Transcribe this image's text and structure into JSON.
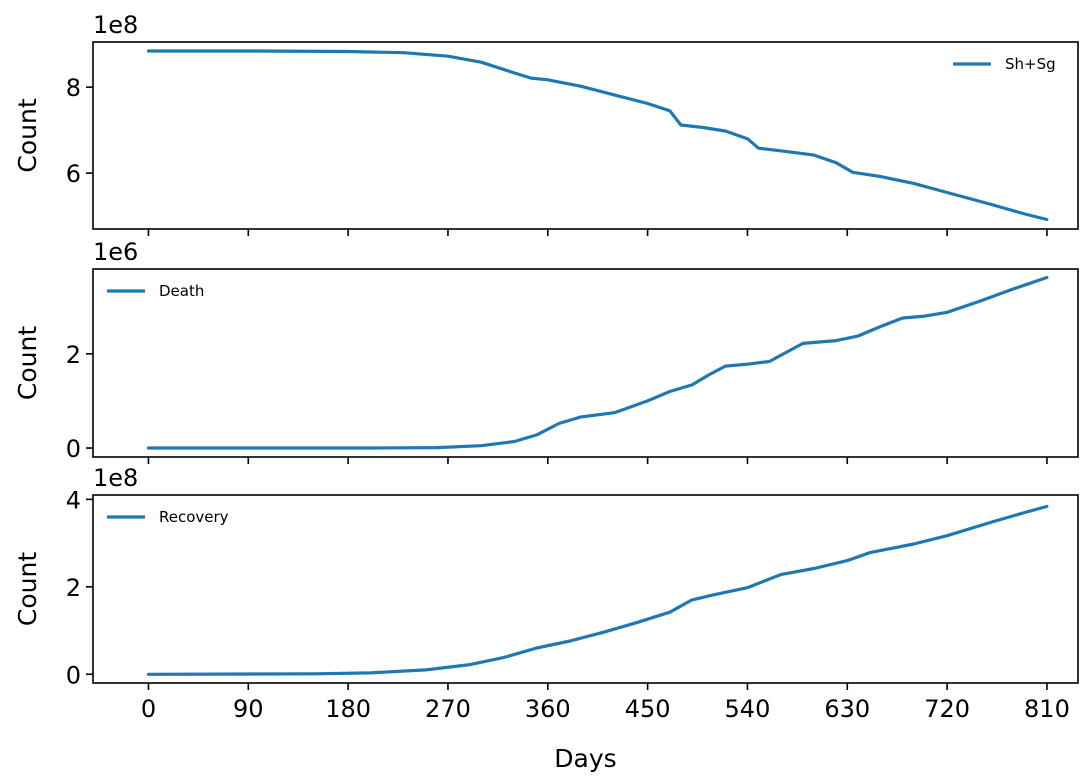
{
  "chart_data": [
    {
      "type": "line",
      "ylabel": "Count",
      "offset_text": "1e8",
      "ylim": [
        4.7,
        9.05
      ],
      "xlim": [
        -50,
        838
      ],
      "yticks": [
        6,
        8
      ],
      "ytick_labels": [
        "6",
        "8"
      ],
      "legend": {
        "placement": "upper-right"
      },
      "series": [
        {
          "name": "Sh+Sg",
          "color": "#1f77b4",
          "points": [
            [
              0,
              8.84
            ],
            [
              90,
              8.84
            ],
            [
              180,
              8.83
            ],
            [
              230,
              8.8
            ],
            [
              270,
              8.72
            ],
            [
              300,
              8.58
            ],
            [
              330,
              8.33
            ],
            [
              345,
              8.21
            ],
            [
              360,
              8.17
            ],
            [
              390,
              8.02
            ],
            [
              420,
              7.82
            ],
            [
              450,
              7.62
            ],
            [
              470,
              7.45
            ],
            [
              480,
              7.12
            ],
            [
              500,
              7.06
            ],
            [
              520,
              6.98
            ],
            [
              540,
              6.8
            ],
            [
              550,
              6.58
            ],
            [
              570,
              6.52
            ],
            [
              600,
              6.42
            ],
            [
              620,
              6.24
            ],
            [
              635,
              6.02
            ],
            [
              660,
              5.92
            ],
            [
              690,
              5.76
            ],
            [
              720,
              5.55
            ],
            [
              760,
              5.27
            ],
            [
              790,
              5.05
            ],
            [
              810,
              4.92
            ]
          ]
        }
      ]
    },
    {
      "type": "line",
      "ylabel": "Count",
      "offset_text": "1e6",
      "ylim": [
        -0.19,
        3.8
      ],
      "xlim": [
        -50,
        838
      ],
      "yticks": [
        0,
        2
      ],
      "ytick_labels": [
        "0",
        "2"
      ],
      "legend": {
        "placement": "upper-left"
      },
      "series": [
        {
          "name": "Death",
          "color": "#1f77b4",
          "points": [
            [
              0,
              0.0
            ],
            [
              200,
              0.0
            ],
            [
              260,
              0.01
            ],
            [
              300,
              0.05
            ],
            [
              330,
              0.14
            ],
            [
              350,
              0.28
            ],
            [
              370,
              0.52
            ],
            [
              390,
              0.66
            ],
            [
              420,
              0.75
            ],
            [
              450,
              1.0
            ],
            [
              470,
              1.2
            ],
            [
              490,
              1.34
            ],
            [
              505,
              1.55
            ],
            [
              520,
              1.74
            ],
            [
              540,
              1.78
            ],
            [
              560,
              1.84
            ],
            [
              590,
              2.22
            ],
            [
              620,
              2.28
            ],
            [
              640,
              2.38
            ],
            [
              660,
              2.58
            ],
            [
              680,
              2.76
            ],
            [
              700,
              2.8
            ],
            [
              720,
              2.88
            ],
            [
              750,
              3.12
            ],
            [
              780,
              3.38
            ],
            [
              810,
              3.62
            ]
          ]
        }
      ]
    },
    {
      "type": "line",
      "ylabel": "Count",
      "offset_text": "1e8",
      "xlabel": "Days",
      "ylim": [
        -0.2,
        4.1
      ],
      "xlim": [
        -50,
        838
      ],
      "xticks": [
        0,
        90,
        180,
        270,
        360,
        450,
        540,
        630,
        720,
        810
      ],
      "xtick_labels": [
        "0",
        "90",
        "180",
        "270",
        "360",
        "450",
        "540",
        "630",
        "720",
        "810"
      ],
      "yticks": [
        0,
        2,
        4
      ],
      "ytick_labels": [
        "0",
        "2",
        "4"
      ],
      "legend": {
        "placement": "upper-left"
      },
      "series": [
        {
          "name": "Recovery",
          "color": "#1f77b4",
          "points": [
            [
              0,
              0.0
            ],
            [
              150,
              0.01
            ],
            [
              200,
              0.03
            ],
            [
              250,
              0.1
            ],
            [
              290,
              0.22
            ],
            [
              320,
              0.38
            ],
            [
              350,
              0.6
            ],
            [
              380,
              0.76
            ],
            [
              410,
              0.96
            ],
            [
              440,
              1.18
            ],
            [
              470,
              1.42
            ],
            [
              490,
              1.7
            ],
            [
              510,
              1.82
            ],
            [
              540,
              1.98
            ],
            [
              570,
              2.28
            ],
            [
              600,
              2.42
            ],
            [
              630,
              2.6
            ],
            [
              650,
              2.78
            ],
            [
              690,
              2.98
            ],
            [
              720,
              3.17
            ],
            [
              760,
              3.48
            ],
            [
              790,
              3.7
            ],
            [
              810,
              3.84
            ]
          ]
        }
      ]
    }
  ]
}
